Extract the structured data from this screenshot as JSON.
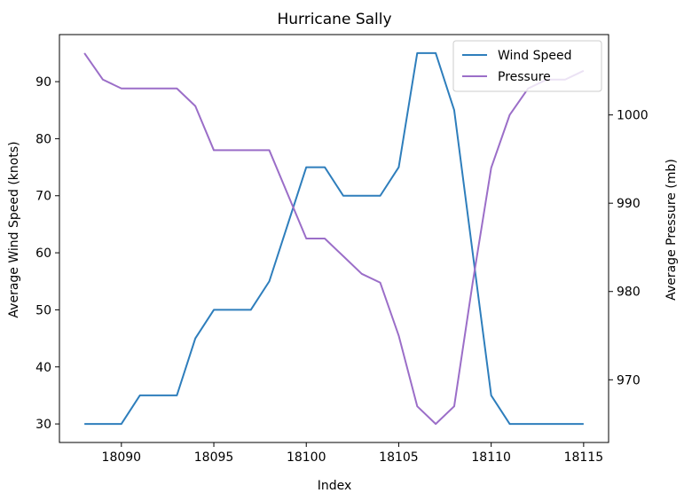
{
  "chart_data": {
    "type": "line",
    "title": "Hurricane Sally",
    "xlabel": "Index",
    "ylabel_left": "Average Wind Speed (knots)",
    "ylabel_right": "Average Pressure (mb)",
    "xlim": [
      18086.65,
      18116.35
    ],
    "ylim_left": [
      26.75,
      98.25
    ],
    "ylim_right": [
      962.9,
      1009.1
    ],
    "x_ticks": [
      18090,
      18095,
      18100,
      18105,
      18110,
      18115
    ],
    "y_left_ticks": [
      30,
      40,
      50,
      60,
      70,
      80,
      90
    ],
    "y_right_ticks": [
      970,
      980,
      990,
      1000
    ],
    "grid": false,
    "legend_position": "upper-right",
    "x": [
      18088,
      18089,
      18090,
      18091,
      18092,
      18093,
      18094,
      18095,
      18096,
      18097,
      18098,
      18099,
      18100,
      18101,
      18102,
      18103,
      18104,
      18105,
      18106,
      18107,
      18108,
      18109,
      18110,
      18111,
      18112,
      18113,
      18114,
      18115
    ],
    "series": [
      {
        "name": "Wind Speed",
        "axis": "left",
        "color": "#2e7ebc",
        "values": [
          30,
          30,
          30,
          35,
          35,
          35,
          45,
          50,
          50,
          50,
          55,
          65,
          75,
          75,
          70,
          70,
          70,
          75,
          95,
          95,
          85,
          60,
          35,
          30,
          30,
          30,
          30,
          30
        ]
      },
      {
        "name": "Pressure",
        "axis": "right",
        "color": "#9b6ec8",
        "values": [
          1007,
          1004,
          1003,
          1003,
          1003,
          1003,
          1001,
          996,
          996,
          996,
          996,
          991,
          986,
          986,
          984,
          982,
          981,
          975,
          967,
          965,
          967,
          981,
          994,
          1000,
          1003,
          1004,
          1004,
          1005
        ]
      }
    ]
  }
}
